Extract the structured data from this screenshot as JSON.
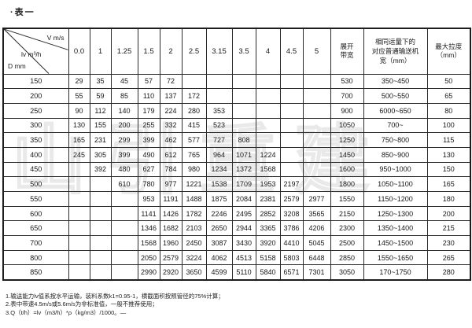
{
  "title": "·表一",
  "watermark": "山引重建",
  "table": {
    "corner": {
      "top": "V  m/s",
      "middle": "lv  m³/h",
      "bottom": "D  mm"
    },
    "velocity_columns": [
      "0.0",
      "1",
      "1.25",
      "1.5",
      "2",
      "2.5",
      "3.15",
      "3.5",
      "4",
      "4.5",
      "5"
    ],
    "right_headers": {
      "span_width": [
        "展开",
        "带宽"
      ],
      "equiv_width": [
        "相同运量下的",
        "对应普通输送机",
        "宽（mm）"
      ],
      "max_pitch": [
        "最大拉度",
        "（mm）"
      ]
    },
    "rows": [
      {
        "d": "150",
        "values": [
          "29",
          "35",
          "45",
          "57",
          "72",
          "",
          "",
          "",
          "",
          "",
          ""
        ],
        "span": "530",
        "equiv": "350~450",
        "max": "50"
      },
      {
        "d": "200",
        "values": [
          "55",
          "59",
          "85",
          "110",
          "137",
          "172",
          "",
          "",
          "",
          "",
          ""
        ],
        "span": "700",
        "equiv": "500~550",
        "max": "65"
      },
      {
        "d": "250",
        "values": [
          "90",
          "112",
          "140",
          "179",
          "224",
          "280",
          "353",
          "",
          "",
          "",
          ""
        ],
        "span": "900",
        "equiv": "6000~650",
        "max": "80"
      },
      {
        "d": "300",
        "values": [
          "130",
          "155",
          "200",
          "255",
          "332",
          "415",
          "523",
          "",
          "",
          "",
          ""
        ],
        "span": "1050",
        "equiv": "700~",
        "max": "100"
      },
      {
        "d": "350",
        "values": [
          "165",
          "231",
          "299",
          "399",
          "462",
          "577",
          "727",
          "808",
          "",
          "",
          ""
        ],
        "span": "1250",
        "equiv": "750~800",
        "max": "115"
      },
      {
        "d": "400",
        "values": [
          "245",
          "305",
          "399",
          "490",
          "612",
          "765",
          "964",
          "1071",
          "1224",
          "",
          ""
        ],
        "span": "1450",
        "equiv": "850~900",
        "max": "130"
      },
      {
        "d": "450",
        "values": [
          "",
          "392",
          "480",
          "627",
          "784",
          "980",
          "1234",
          "1372",
          "1568",
          "",
          ""
        ],
        "span": "1600",
        "equiv": "950~1000",
        "max": "150"
      },
      {
        "d": "500",
        "values": [
          "",
          "",
          "610",
          "780",
          "977",
          "1221",
          "1538",
          "1709",
          "1953",
          "2197",
          ""
        ],
        "span": "1800",
        "equiv": "1050~1100",
        "max": "165"
      },
      {
        "d": "550",
        "values": [
          "",
          "",
          "",
          "953",
          "1191",
          "1488",
          "1875",
          "2084",
          "2381",
          "2579",
          "2977"
        ],
        "span": "1550",
        "equiv": "1150~1200",
        "max": "180"
      },
      {
        "d": "600",
        "values": [
          "",
          "",
          "",
          "1141",
          "1426",
          "1782",
          "2246",
          "2495",
          "2852",
          "3208",
          "3565"
        ],
        "span": "2150",
        "equiv": "1250~1300",
        "max": "200"
      },
      {
        "d": "650",
        "values": [
          "",
          "",
          "",
          "1346",
          "1682",
          "2103",
          "2650",
          "2944",
          "3365",
          "3786",
          "4206"
        ],
        "span": "2300",
        "equiv": "1350~1400",
        "max": "215"
      },
      {
        "d": "700",
        "values": [
          "",
          "",
          "",
          "1568",
          "1960",
          "2450",
          "3087",
          "3430",
          "3920",
          "4410",
          "5045"
        ],
        "span": "2500",
        "equiv": "1450~1500",
        "max": "230"
      },
      {
        "d": "800",
        "values": [
          "",
          "",
          "",
          "2050",
          "2579",
          "3224",
          "4062",
          "4513",
          "5158",
          "5803",
          "6448"
        ],
        "span": "2850",
        "equiv": "1550~1650",
        "max": "265"
      },
      {
        "d": "850",
        "values": [
          "",
          "",
          "",
          "2990",
          "2920",
          "3650",
          "4599",
          "5110",
          "5840",
          "6571",
          "7301"
        ],
        "span": "3050",
        "equiv": "170~1750",
        "max": "280"
      }
    ]
  },
  "notes": [
    "1.输送能力lv值系按水平运输，装料系数k1=0.95-1，横截面积按照管径的75%计算；",
    "2.表中带速4.5m/s或5.6m/s为非标准值，一般不推荐使用；",
    "3.Q（t/h）=lv（m3/h）*ρ（kg/m3）/1000。—"
  ]
}
